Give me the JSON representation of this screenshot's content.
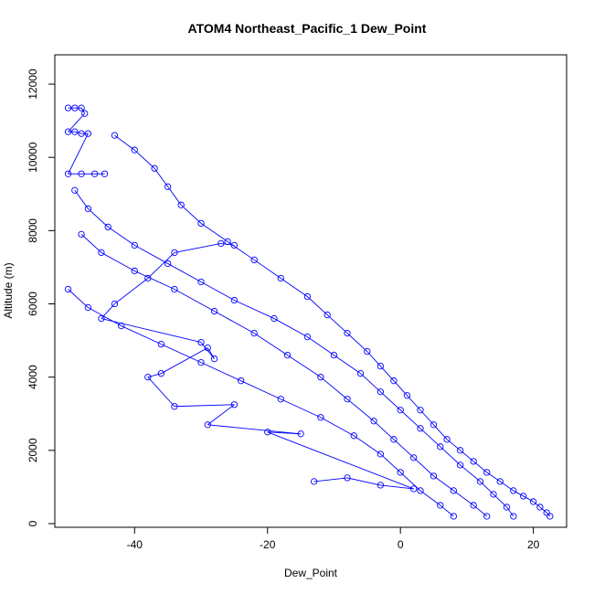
{
  "chart_data": {
    "type": "scatter",
    "title": "ATOM4 Northeast_Pacific_1 Dew_Point",
    "xlabel": "Dew_Point",
    "ylabel": "Altitude (m)",
    "xlim": [
      -52,
      25
    ],
    "ylim": [
      -100,
      12800
    ],
    "xticks": [
      -40,
      -20,
      0,
      20
    ],
    "yticks": [
      0,
      2000,
      4000,
      6000,
      8000,
      10000,
      12000
    ],
    "grid": false,
    "legend": "none",
    "marker": "open-circle",
    "color": "#0000ff",
    "series": [
      {
        "values": [
          {
            "x": 22.5,
            "y": 200
          },
          {
            "x": 22.0,
            "y": 300
          },
          {
            "x": 21.0,
            "y": 450
          },
          {
            "x": 20.0,
            "y": 600
          },
          {
            "x": 18.5,
            "y": 750
          },
          {
            "x": 17.0,
            "y": 900
          },
          {
            "x": 15.0,
            "y": 1150
          },
          {
            "x": 13.0,
            "y": 1400
          },
          {
            "x": 11.0,
            "y": 1700
          },
          {
            "x": 9.0,
            "y": 2000
          },
          {
            "x": 7.0,
            "y": 2300
          },
          {
            "x": 5.0,
            "y": 2700
          },
          {
            "x": 3.0,
            "y": 3100
          },
          {
            "x": 1.0,
            "y": 3500
          },
          {
            "x": -1.0,
            "y": 3900
          },
          {
            "x": -3.0,
            "y": 4300
          },
          {
            "x": -5.0,
            "y": 4700
          },
          {
            "x": -8.0,
            "y": 5200
          },
          {
            "x": -11.0,
            "y": 5700
          },
          {
            "x": -14.0,
            "y": 6200
          },
          {
            "x": -18.0,
            "y": 6700
          },
          {
            "x": -22.0,
            "y": 7200
          },
          {
            "x": -26.0,
            "y": 7700
          },
          {
            "x": -30.0,
            "y": 8200
          },
          {
            "x": -33.0,
            "y": 8700
          },
          {
            "x": -35.0,
            "y": 9200
          },
          {
            "x": -37.0,
            "y": 9700
          },
          {
            "x": -40.0,
            "y": 10200
          },
          {
            "x": -43.0,
            "y": 10600
          }
        ]
      },
      {
        "values": [
          {
            "x": 17.0,
            "y": 200
          },
          {
            "x": 16.0,
            "y": 450
          },
          {
            "x": 14.0,
            "y": 800
          },
          {
            "x": 12.0,
            "y": 1150
          },
          {
            "x": 9.0,
            "y": 1600
          },
          {
            "x": 6.0,
            "y": 2100
          },
          {
            "x": 3.0,
            "y": 2600
          },
          {
            "x": 0.0,
            "y": 3100
          },
          {
            "x": -3.0,
            "y": 3600
          },
          {
            "x": -6.0,
            "y": 4100
          },
          {
            "x": -10.0,
            "y": 4600
          },
          {
            "x": -14.0,
            "y": 5100
          },
          {
            "x": -19.0,
            "y": 5600
          },
          {
            "x": -25.0,
            "y": 6100
          },
          {
            "x": -30.0,
            "y": 6600
          },
          {
            "x": -35.0,
            "y": 7100
          },
          {
            "x": -40.0,
            "y": 7600
          },
          {
            "x": -44.0,
            "y": 8100
          },
          {
            "x": -47.0,
            "y": 8600
          },
          {
            "x": -49.0,
            "y": 9100
          }
        ]
      },
      {
        "values": [
          {
            "x": 13.0,
            "y": 200
          },
          {
            "x": 11.0,
            "y": 500
          },
          {
            "x": 8.0,
            "y": 900
          },
          {
            "x": 5.0,
            "y": 1300
          },
          {
            "x": 2.0,
            "y": 1800
          },
          {
            "x": -1.0,
            "y": 2300
          },
          {
            "x": -4.0,
            "y": 2800
          },
          {
            "x": -8.0,
            "y": 3400
          },
          {
            "x": -12.0,
            "y": 4000
          },
          {
            "x": -17.0,
            "y": 4600
          },
          {
            "x": -22.0,
            "y": 5200
          },
          {
            "x": -28.0,
            "y": 5800
          },
          {
            "x": -34.0,
            "y": 6400
          },
          {
            "x": -40.0,
            "y": 6900
          },
          {
            "x": -45.0,
            "y": 7400
          },
          {
            "x": -48.0,
            "y": 7900
          }
        ]
      },
      {
        "values": [
          {
            "x": 8.0,
            "y": 200
          },
          {
            "x": 6.0,
            "y": 500
          },
          {
            "x": 3.0,
            "y": 900
          },
          {
            "x": 0.0,
            "y": 1400
          },
          {
            "x": -3.0,
            "y": 1900
          },
          {
            "x": -7.0,
            "y": 2400
          },
          {
            "x": -12.0,
            "y": 2900
          },
          {
            "x": -18.0,
            "y": 3400
          },
          {
            "x": -24.0,
            "y": 3900
          },
          {
            "x": -30.0,
            "y": 4400
          },
          {
            "x": -36.0,
            "y": 4900
          },
          {
            "x": -42.0,
            "y": 5400
          },
          {
            "x": -47.0,
            "y": 5900
          },
          {
            "x": -50.0,
            "y": 6400
          }
        ]
      },
      {
        "values": [
          {
            "x": -13.0,
            "y": 1150
          },
          {
            "x": -8.0,
            "y": 1250
          },
          {
            "x": -3.0,
            "y": 1050
          },
          {
            "x": 2.0,
            "y": 950
          },
          {
            "x": -20.0,
            "y": 2500
          },
          {
            "x": -15.0,
            "y": 2450
          },
          {
            "x": -29.0,
            "y": 2700
          },
          {
            "x": -25.0,
            "y": 3250
          },
          {
            "x": -34.0,
            "y": 3200
          },
          {
            "x": -38.0,
            "y": 4000
          },
          {
            "x": -36.0,
            "y": 4100
          },
          {
            "x": -29.0,
            "y": 4800
          },
          {
            "x": -28.0,
            "y": 4500
          },
          {
            "x": -30.0,
            "y": 4950
          },
          {
            "x": -45.0,
            "y": 5600
          },
          {
            "x": -43.0,
            "y": 6000
          },
          {
            "x": -38.0,
            "y": 6700
          },
          {
            "x": -34.0,
            "y": 7400
          },
          {
            "x": -27.0,
            "y": 7650
          },
          {
            "x": -25.0,
            "y": 7600
          }
        ]
      },
      {
        "values": [
          {
            "x": -50.0,
            "y": 11350
          },
          {
            "x": -49.0,
            "y": 11350
          },
          {
            "x": -48.0,
            "y": 11350
          },
          {
            "x": -47.5,
            "y": 11200
          },
          {
            "x": -50.0,
            "y": 10700
          },
          {
            "x": -49.0,
            "y": 10700
          },
          {
            "x": -48.0,
            "y": 10650
          },
          {
            "x": -47.0,
            "y": 10650
          },
          {
            "x": -50.0,
            "y": 9550
          },
          {
            "x": -48.0,
            "y": 9550
          },
          {
            "x": -46.0,
            "y": 9550
          },
          {
            "x": -44.5,
            "y": 9550
          }
        ]
      }
    ]
  }
}
